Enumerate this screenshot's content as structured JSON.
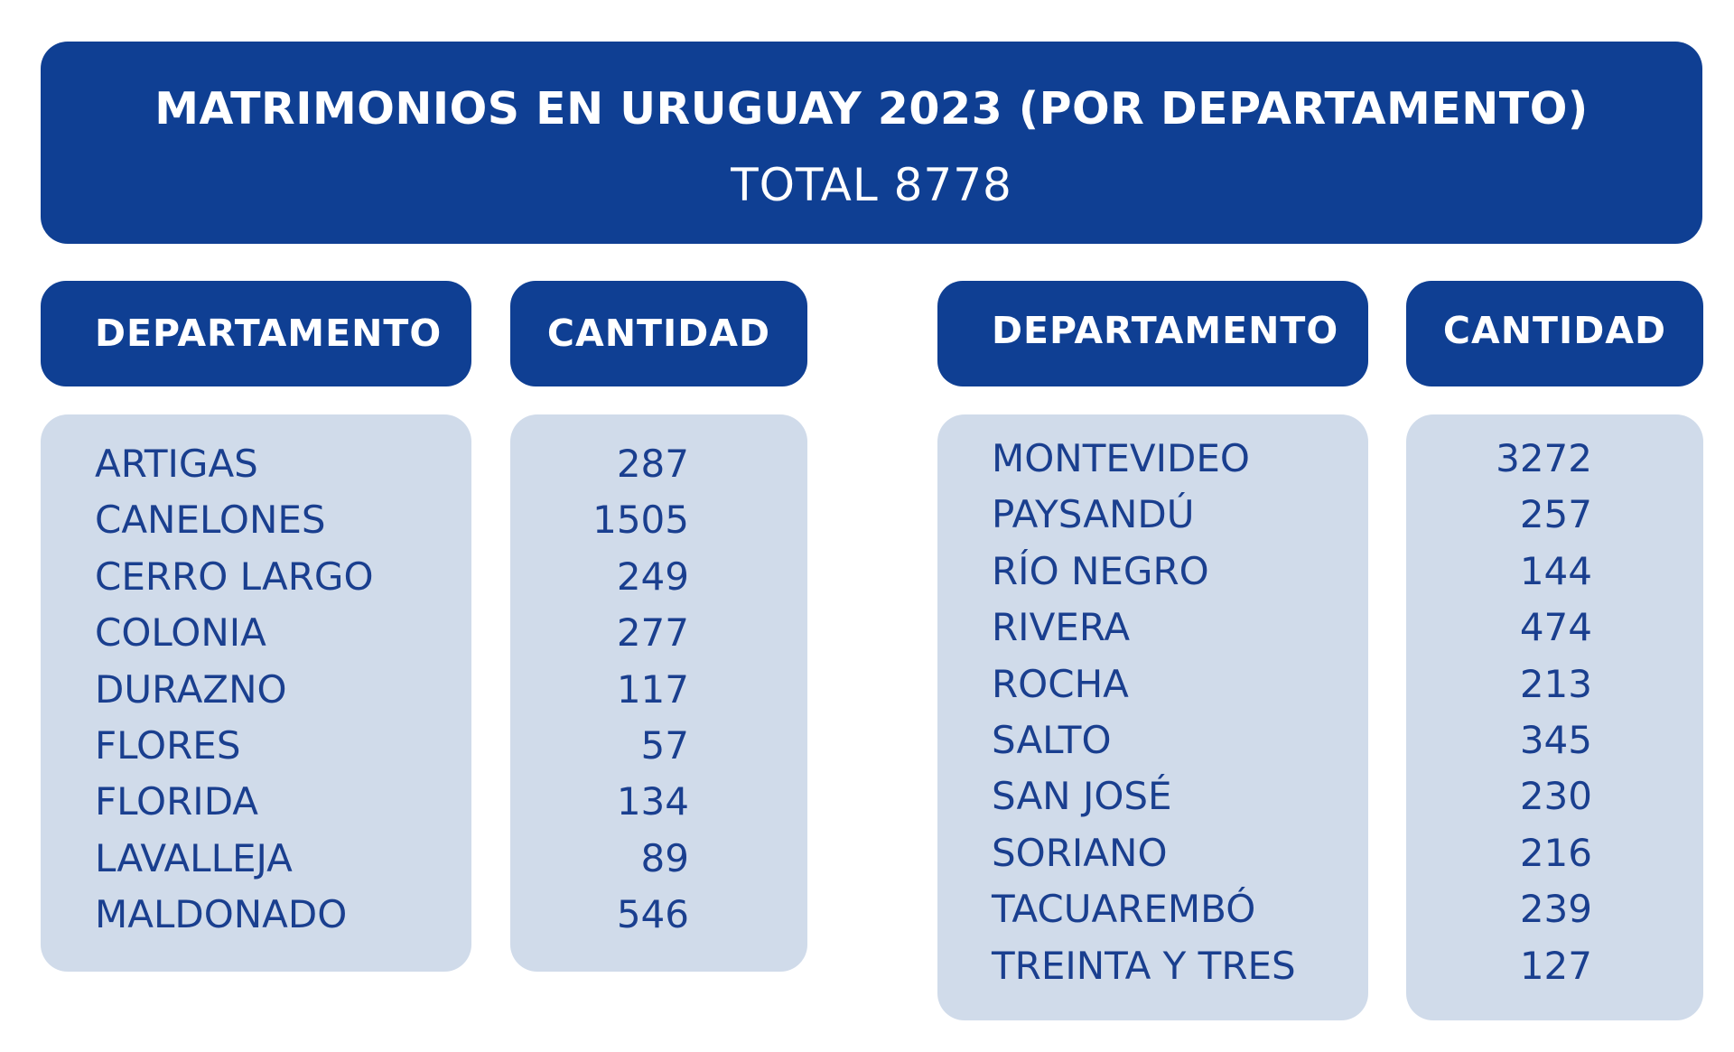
{
  "header": {
    "title": "MATRIMONIOS EN URUGUAY 2023 (POR DEPARTAMENTO)",
    "total": "TOTAL 8778"
  },
  "columns": {
    "departamento": "DEPARTAMENTO",
    "cantidad": "CANTIDAD"
  },
  "left_table": [
    {
      "departamento": "ARTIGAS",
      "cantidad": "287"
    },
    {
      "departamento": "CANELONES",
      "cantidad": "1505"
    },
    {
      "departamento": "CERRO LARGO",
      "cantidad": "249"
    },
    {
      "departamento": "COLONIA",
      "cantidad": "277"
    },
    {
      "departamento": "DURAZNO",
      "cantidad": "117"
    },
    {
      "departamento": "FLORES",
      "cantidad": "57"
    },
    {
      "departamento": "FLORIDA",
      "cantidad": "134"
    },
    {
      "departamento": "LAVALLEJA",
      "cantidad": "89"
    },
    {
      "departamento": "MALDONADO",
      "cantidad": "546"
    }
  ],
  "right_table": [
    {
      "departamento": "MONTEVIDEO",
      "cantidad": "3272"
    },
    {
      "departamento": "PAYSANDÚ",
      "cantidad": "257"
    },
    {
      "departamento": "RÍO NEGRO",
      "cantidad": "144"
    },
    {
      "departamento": "RIVERA",
      "cantidad": "474"
    },
    {
      "departamento": "ROCHA",
      "cantidad": "213"
    },
    {
      "departamento": "SALTO",
      "cantidad": "345"
    },
    {
      "departamento": "SAN JOSÉ",
      "cantidad": "230"
    },
    {
      "departamento": "SORIANO",
      "cantidad": "216"
    },
    {
      "departamento": "TACUAREMBÓ",
      "cantidad": "239"
    },
    {
      "departamento": "TREINTA Y TRES",
      "cantidad": "127"
    }
  ],
  "colors": {
    "header_bg": "#0f3f93",
    "body_bg": "#d0dbea",
    "body_text": "#1a3f8f",
    "header_text": "#ffffff"
  }
}
